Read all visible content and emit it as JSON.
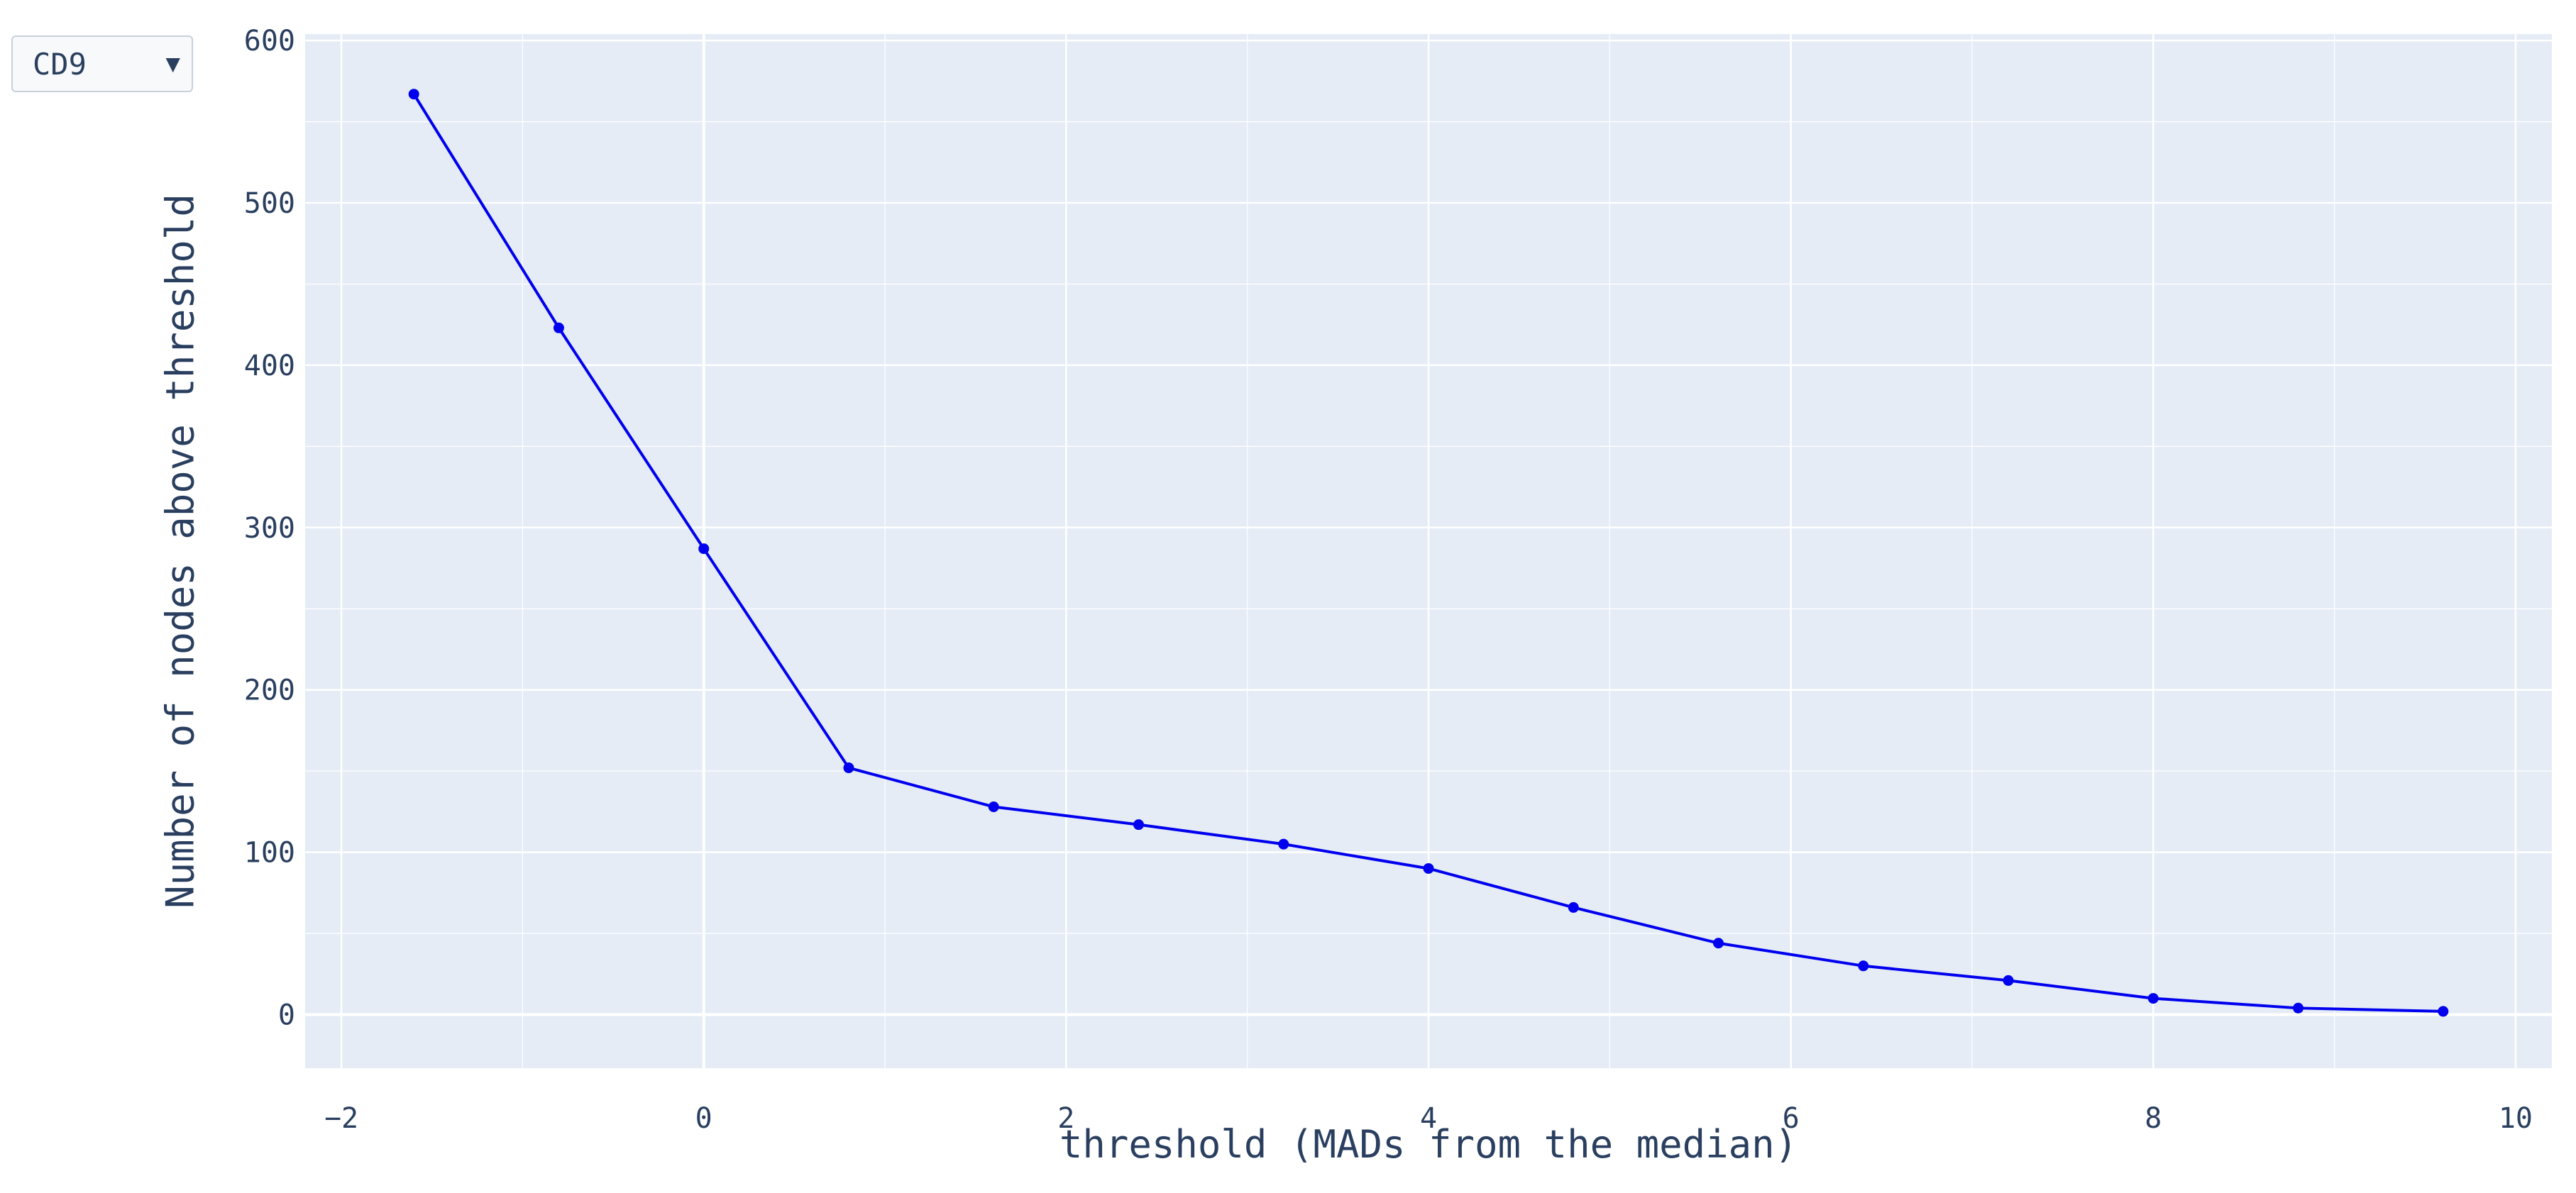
{
  "dropdown": {
    "selected": "CD9",
    "arrow_icon": "triangle-down-icon"
  },
  "colors": {
    "plot_bg": "#e5ecf6",
    "grid": "#ffffff",
    "line": "#0000ee",
    "text": "#2a3f5f"
  },
  "chart_data": {
    "type": "line",
    "xlabel": "threshold (MADs from the median)",
    "ylabel": "Number of nodes above threshold",
    "xlim": [
      -2.2,
      10.2
    ],
    "ylim": [
      -33,
      604
    ],
    "xticks": [
      -2,
      0,
      2,
      4,
      6,
      8,
      10
    ],
    "xtick_labels": [
      "−2",
      "0",
      "2",
      "4",
      "6",
      "8",
      "10"
    ],
    "yticks": [
      0,
      100,
      200,
      300,
      400,
      500,
      600
    ],
    "ytick_labels": [
      "0",
      "100",
      "200",
      "300",
      "400",
      "500",
      "600"
    ],
    "grid": true,
    "series": [
      {
        "x": [
          -1.6,
          -0.8,
          0.0,
          0.8,
          1.6,
          2.4,
          3.2,
          4.0,
          4.8,
          5.6,
          6.4,
          7.2,
          8.0,
          8.8,
          9.6
        ],
        "y": [
          567,
          423,
          287,
          152,
          128,
          117,
          105,
          90,
          66,
          44,
          30,
          21,
          10,
          4,
          2
        ]
      }
    ]
  }
}
